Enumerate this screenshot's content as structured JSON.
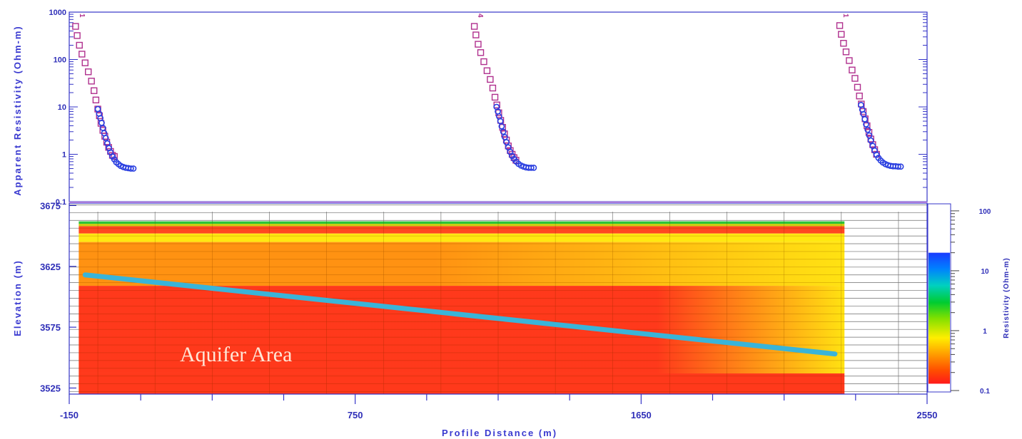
{
  "chart_data": [
    {
      "type": "scatter",
      "panel": "top",
      "ylabel": "Apparent Resistivity (Ohm-m)",
      "yscale": "log",
      "ylim": [
        0.1,
        1000
      ],
      "yticks": [
        "0.1",
        "1",
        "10",
        "100",
        "1000"
      ],
      "xlim": [
        -150,
        2550
      ],
      "sounding_labels": [
        "1",
        "4",
        "1"
      ],
      "series": [
        {
          "marker": "square",
          "color": "#b0308e",
          "soundings": [
            {
              "x": [
                -130,
                -125,
                -118,
                -110,
                -100,
                -90,
                -80,
                -72,
                -66,
                -60,
                -55,
                -50,
                -44,
                -38,
                -32,
                -26,
                -20,
                -14,
                -8
              ],
              "y": [
                500,
                320,
                200,
                130,
                85,
                55,
                35,
                22,
                14,
                9,
                6.5,
                4.5,
                3.2,
                2.4,
                1.8,
                1.4,
                1.15,
                0.95,
                0.9
              ]
            },
            {
              "x": [
                1125,
                1130,
                1137,
                1145,
                1155,
                1165,
                1175,
                1183,
                1190,
                1196,
                1202,
                1208,
                1214,
                1220,
                1226,
                1232,
                1238,
                1244,
                1250,
                1256
              ],
              "y": [
                500,
                330,
                210,
                140,
                90,
                58,
                38,
                25,
                16,
                11,
                7.5,
                5.2,
                3.7,
                2.7,
                2.0,
                1.5,
                1.2,
                1.0,
                0.85,
                0.75
              ]
            },
            {
              "x": [
                2275,
                2280,
                2287,
                2295,
                2305,
                2314,
                2323,
                2331,
                2337,
                2343,
                2349,
                2355,
                2361,
                2367,
                2373,
                2379,
                2385,
                2391
              ],
              "y": [
                520,
                340,
                220,
                145,
                95,
                60,
                40,
                26,
                17,
                11.5,
                8,
                5.6,
                4,
                2.9,
                2.1,
                1.6,
                1.25,
                1.0
              ]
            }
          ]
        },
        {
          "marker": "circle",
          "color": "#2a3fe0",
          "soundings": [
            {
              "x": [
                -60,
                -56,
                -52,
                -48,
                -44,
                -40,
                -35,
                -30,
                -25,
                -20,
                -14,
                -8,
                -2,
                5,
                12,
                20,
                28,
                36,
                44,
                52
              ],
              "y": [
                9,
                7.2,
                5.8,
                4.6,
                3.6,
                2.8,
                2.2,
                1.7,
                1.35,
                1.1,
                0.9,
                0.78,
                0.68,
                0.62,
                0.57,
                0.54,
                0.52,
                0.51,
                0.5,
                0.5
              ]
            },
            {
              "x": [
                1195,
                1199,
                1203,
                1207,
                1211,
                1216,
                1221,
                1226,
                1232,
                1238,
                1244,
                1250,
                1257,
                1264,
                1272,
                1280,
                1288,
                1296,
                1304,
                1312
              ],
              "y": [
                10,
                8,
                6.3,
                5,
                3.9,
                3.0,
                2.3,
                1.8,
                1.4,
                1.12,
                0.92,
                0.8,
                0.7,
                0.63,
                0.58,
                0.55,
                0.53,
                0.52,
                0.52,
                0.52
              ]
            },
            {
              "x": [
                2342,
                2346,
                2350,
                2354,
                2358,
                2363,
                2368,
                2373,
                2379,
                2385,
                2391,
                2397,
                2404,
                2411,
                2419,
                2427,
                2435,
                2443,
                2451,
                2459,
                2467
              ],
              "y": [
                11,
                8.8,
                7,
                5.5,
                4.3,
                3.3,
                2.5,
                1.95,
                1.5,
                1.2,
                0.98,
                0.84,
                0.74,
                0.67,
                0.62,
                0.59,
                0.57,
                0.56,
                0.56,
                0.55,
                0.55
              ]
            }
          ]
        }
      ]
    },
    {
      "type": "heatmap",
      "panel": "bottom",
      "xlabel": "Profile Distance (m)",
      "ylabel": "Elevation (m)",
      "xlim": [
        -150,
        2550
      ],
      "xticks": [
        -150,
        750,
        1650,
        2550
      ],
      "ylim": [
        3520,
        3677
      ],
      "yticks": [
        3525,
        3575,
        3625,
        3675
      ],
      "section_x_range": [
        -120,
        2290
      ],
      "layers": [
        {
          "top": 3662,
          "bottom": 3660,
          "color": "#1dbf2a"
        },
        {
          "top": 3660,
          "bottom": 3658,
          "color": "#c8c800"
        },
        {
          "top": 3658,
          "bottom": 3652,
          "color": "#ff3a10"
        },
        {
          "top": 3652,
          "bottom": 3645,
          "color": "#ffe600"
        },
        {
          "top": 3645,
          "bottom": 3609,
          "color_left": "#ff8a00",
          "color_right": "#ffe000",
          "gradient_start_x": 1000
        },
        {
          "top": 3609,
          "bottom": 3537,
          "color_left": "#ff2a0a",
          "color_right": "#ffe000",
          "gradient_start_x": 1700
        },
        {
          "top": 3537,
          "bottom": 3520,
          "color": "#ff2a0a"
        }
      ],
      "interpretation_line": {
        "color": "#3ab4d8",
        "x": [
          -100,
          2260
        ],
        "y": [
          3618,
          3553
        ]
      },
      "annotations": [
        {
          "text": "Aquifer Area",
          "x": 80,
          "y": 3550
        }
      ],
      "colorbar": {
        "label": "Resistivity (Ohm-m)",
        "scale": "log",
        "range": [
          0.1,
          100
        ],
        "ticks": [
          "0.1",
          "1",
          "10",
          "100"
        ],
        "colored_range": [
          0.13,
          20
        ]
      }
    }
  ]
}
